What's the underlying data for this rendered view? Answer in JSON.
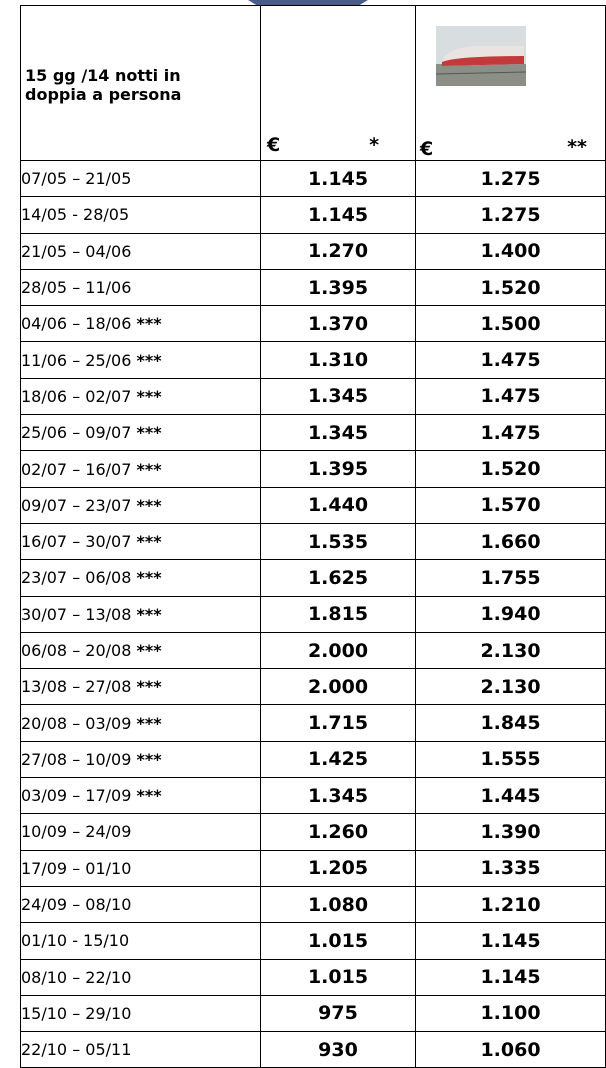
{
  "header": {
    "title": "15 gg /14 notti in doppia a persona",
    "col2_currency": "€",
    "col2_mark": "*",
    "col3_currency": "€",
    "col3_mark": "**"
  },
  "table": {
    "rows": [
      {
        "period": "07/05 – 21/05",
        "price_1": "1.145",
        "price_2": "1.275"
      },
      {
        "period": "14/05 - 28/05",
        "price_1": "1.145",
        "price_2": "1.275"
      },
      {
        "period": "21/05 – 04/06",
        "price_1": "1.270",
        "price_2": "1.400"
      },
      {
        "period": "28/05 – 11/06",
        "price_1": "1.395",
        "price_2": "1.520"
      },
      {
        "period": "04/06 – 18/06",
        "note": "***",
        "price_1": "1.370",
        "price_2": "1.500"
      },
      {
        "period": "11/06 – 25/06",
        "note": "***",
        "price_1": "1.310",
        "price_2": "1.475"
      },
      {
        "period": "18/06 – 02/07",
        "note": "***",
        "price_1": "1.345",
        "price_2": "1.475"
      },
      {
        "period": "25/06 – 09/07",
        "note": "***",
        "price_1": "1.345",
        "price_2": "1.475"
      },
      {
        "period": "02/07 – 16/07",
        "note": "***",
        "price_1": "1.395",
        "price_2": "1.520"
      },
      {
        "period": "09/07 – 23/07",
        "note": "***",
        "price_1": "1.440",
        "price_2": "1.570"
      },
      {
        "period": "16/07 – 30/07",
        "note": "***",
        "price_1": "1.535",
        "price_2": "1.660"
      },
      {
        "period": "23/07 – 06/08",
        "note": "***",
        "price_1": "1.625",
        "price_2": "1.755"
      },
      {
        "period": "30/07 – 13/08",
        "note": "***",
        "price_1": "1.815",
        "price_2": "1.940"
      },
      {
        "period": "06/08 – 20/08",
        "note": "***",
        "price_1": "2.000",
        "price_2": "2.130"
      },
      {
        "period": "13/08 – 27/08",
        "note": "***",
        "price_1": "2.000",
        "price_2": "2.130"
      },
      {
        "period": "20/08 – 03/09",
        "note": "***",
        "price_1": "1.715",
        "price_2": "1.845"
      },
      {
        "period": "27/08 – 10/09",
        "note": "***",
        "price_1": "1.425",
        "price_2": "1.555"
      },
      {
        "period": "03/09 – 17/09",
        "note": "***",
        "price_1": "1.345",
        "price_2": "1.445"
      },
      {
        "period": "10/09 – 24/09",
        "price_1": "1.260",
        "price_2": "1.390"
      },
      {
        "period": "17/09 – 01/10",
        "price_1": "1.205",
        "price_2": "1.335"
      },
      {
        "period": "24/09 – 08/10",
        "price_1": "1.080",
        "price_2": "1.210"
      },
      {
        "period": "01/10 - 15/10",
        "price_1": "1.015",
        "price_2": "1.145"
      },
      {
        "period": "08/10 – 22/10",
        "price_1": "1.015",
        "price_2": "1.145"
      },
      {
        "period": "15/10 – 29/10",
        "price_1": "975",
        "price_2": "1.100"
      },
      {
        "period": "22/10 – 05/11",
        "price_1": "930",
        "price_2": "1.060"
      }
    ]
  }
}
